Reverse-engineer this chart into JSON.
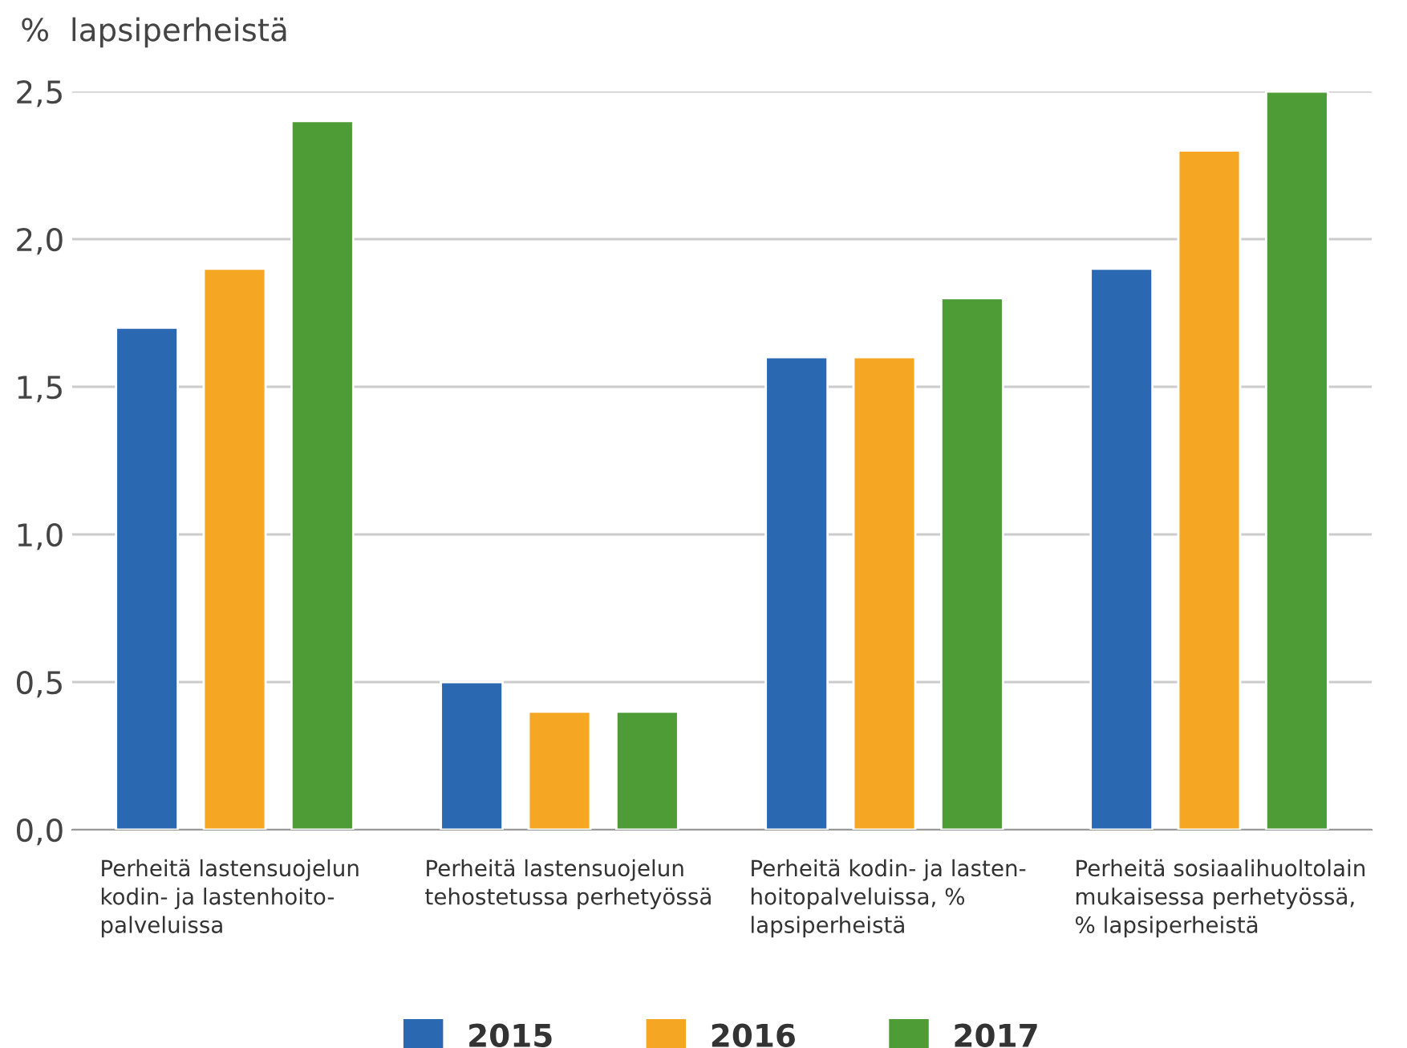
{
  "chart_data": {
    "type": "bar",
    "ylabel": "%  lapsiperheistä",
    "categories": [
      "Perheitä lastensuojelun\nkodin- ja lastenhoito-\npalveluissa",
      "Perheitä lastensuojelun\ntehostetussa perhetyössä",
      "Perheitä kodin- ja lasten-\nhoitopalveluissa, %\nlapsiperheistä",
      "Perheitä sosiaalihuoltolain\nmukaisessa perhetyössä,\n% lapsiperheistä"
    ],
    "series": [
      {
        "name": "2015",
        "color": "#2a68b1",
        "values": [
          1.7,
          0.5,
          1.6,
          1.9
        ]
      },
      {
        "name": "2016",
        "color": "#f5a623",
        "values": [
          1.9,
          0.4,
          1.6,
          2.3
        ]
      },
      {
        "name": "2017",
        "color": "#4e9c35",
        "values": [
          2.4,
          0.4,
          1.8,
          2.5
        ]
      }
    ],
    "ylim": [
      0,
      2.5
    ],
    "yticks": [
      {
        "value": 0,
        "label": "0,0"
      },
      {
        "value": 0.5,
        "label": "0,5"
      },
      {
        "value": 1.0,
        "label": "1,0"
      },
      {
        "value": 1.5,
        "label": "1,5"
      },
      {
        "value": 2.0,
        "label": "2,0"
      },
      {
        "value": 2.5,
        "label": "2,5"
      }
    ],
    "grid": "y",
    "legend": "bottom"
  }
}
